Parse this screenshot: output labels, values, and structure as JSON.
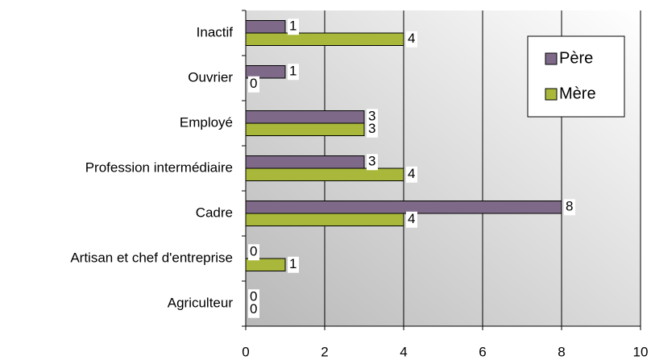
{
  "chart_data": {
    "type": "bar",
    "orientation": "horizontal",
    "categories": [
      "Inactif",
      "Ouvrier",
      "Employé",
      "Profession intermédiaire",
      "Cadre",
      "Artisan et chef d'entreprise",
      "Agriculteur"
    ],
    "series": [
      {
        "name": "Père",
        "color": "#7e6a88",
        "values": [
          1,
          1,
          3,
          3,
          8,
          0,
          0
        ]
      },
      {
        "name": "Mère",
        "color": "#a9b83a",
        "values": [
          4,
          0,
          3,
          4,
          4,
          1,
          0
        ]
      }
    ],
    "xlim": [
      0,
      10
    ],
    "xticks": [
      0,
      2,
      4,
      6,
      8,
      10
    ],
    "grid": true,
    "legend": "upper right",
    "data_labels": true
  }
}
